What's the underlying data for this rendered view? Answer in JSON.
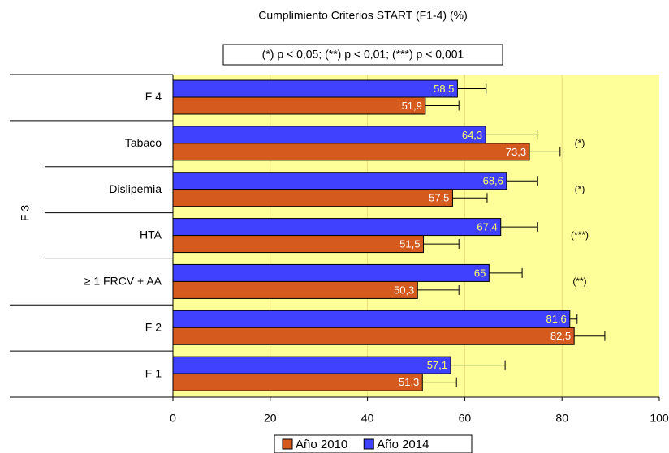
{
  "chart_data": {
    "type": "bar",
    "orientation": "horizontal",
    "title": "Cumplimiento Criterios START (F1-4) (%)",
    "note": "(*) p < 0,05; (**) p < 0,01; (***) p < 0,001",
    "group_label": "F 3",
    "categories": [
      "F 4",
      "Tabaco",
      "Dislipemia",
      "HTA",
      "≥ 1 FRCV + AA",
      "F 2",
      "F 1"
    ],
    "series": [
      {
        "name": "Año 2014",
        "color": "#4040ff",
        "values": [
          58.5,
          64.3,
          68.6,
          67.4,
          65,
          81.6,
          57.1
        ],
        "value_labels": [
          "58,5",
          "64,3",
          "68,6",
          "67,4",
          "65",
          "81,6",
          "57,1"
        ],
        "errors": [
          5.9,
          10.6,
          6.4,
          7.6,
          6.8,
          1.5,
          11.2
        ],
        "label_color": "#ffff66"
      },
      {
        "name": "Año 2010",
        "color": "#d45a1e",
        "values": [
          51.9,
          73.3,
          57.5,
          51.5,
          50.3,
          82.5,
          51.3
        ],
        "value_labels": [
          "51,9",
          "73,3",
          "57,5",
          "51,5",
          "50,3",
          "82,5",
          "51,3"
        ],
        "errors": [
          6.9,
          6.3,
          7.1,
          7.3,
          8.5,
          6.3,
          7.0
        ],
        "label_color": "#ffffff"
      }
    ],
    "significance": [
      null,
      "(*)",
      "(*)",
      "(***)",
      "(**)",
      null,
      null
    ],
    "xlim": [
      0,
      100
    ],
    "xticks": [
      0,
      20,
      40,
      60,
      80,
      100
    ],
    "grid": true,
    "plot_background": "#ffff99",
    "legend": "bottom"
  }
}
